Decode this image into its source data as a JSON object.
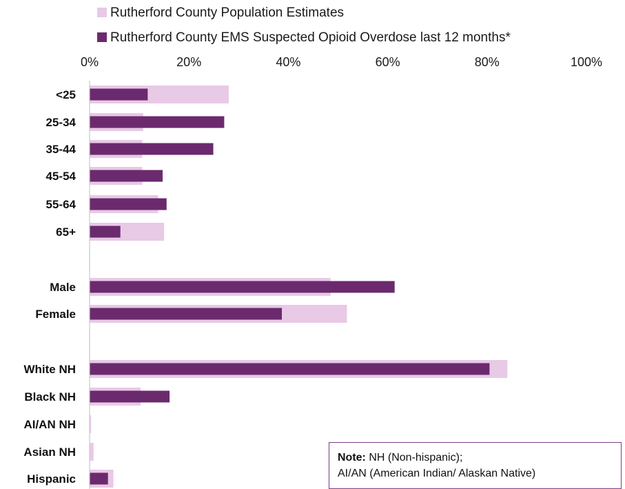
{
  "chart_data": {
    "type": "bar",
    "orientation": "horizontal",
    "categories": [
      "<25",
      "25-34",
      "35-44",
      "45-54",
      "55-64",
      "65+",
      "Male",
      "Female",
      "White NH",
      "Black NH",
      "AI/AN NH",
      "Asian NH",
      "Hispanic"
    ],
    "series": [
      {
        "name": "Rutherford County Population Estimates",
        "color": "#e8c9e6",
        "values": [
          28,
          10.8,
          10.6,
          10.6,
          13.8,
          15,
          48.5,
          51.8,
          84.1,
          10.3,
          0.3,
          0.8,
          4.8
        ]
      },
      {
        "name": "Rutherford County EMS Suspected Opioid Overdose last 12 months*",
        "color": "#6b2a6e",
        "values": [
          11.7,
          27.1,
          24.9,
          14.7,
          15.5,
          6.2,
          61.4,
          38.7,
          80.5,
          16.1,
          0,
          0,
          3.7
        ]
      }
    ],
    "xlim": [
      0,
      100
    ],
    "x_ticks": [
      "0%",
      "20%",
      "40%",
      "60%",
      "80%",
      "100%"
    ],
    "grid": false,
    "legend_position": "top"
  },
  "note": {
    "label": "Note:",
    "line1": "NH (Non-hispanic);",
    "line2": "AI/AN (American Indian/ Alaskan Native)"
  }
}
